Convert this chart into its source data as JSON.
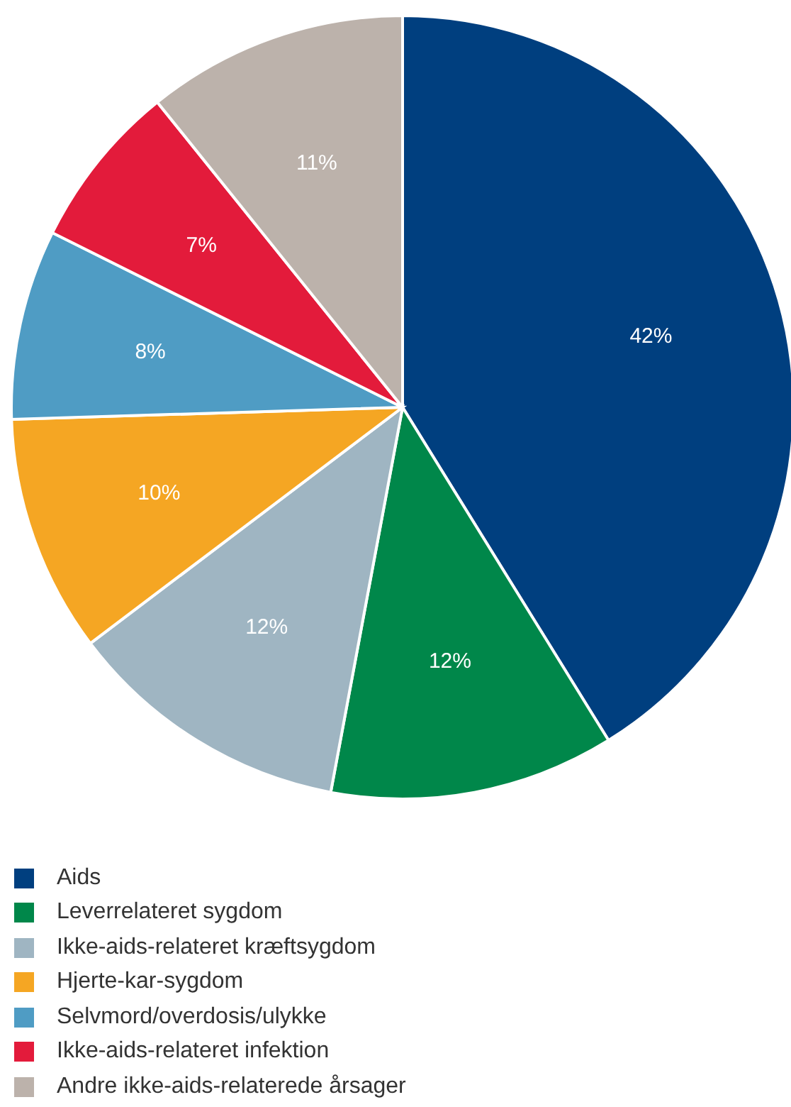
{
  "chart_data": {
    "type": "pie",
    "categories": [
      "Aids",
      "Leverrelateret sygdom",
      "Ikke-aids-relateret kræftsygdom",
      "Hjerte-kar-sygdom",
      "Selvmord/overdosis/ulykke",
      "Ikke-aids-relateret infektion",
      "Andre ikke-aids-relaterede årsager"
    ],
    "values": [
      42,
      12,
      12,
      10,
      8,
      7,
      11
    ],
    "value_labels": [
      "42%",
      "12%",
      "12%",
      "10%",
      "8%",
      "7%",
      "11%"
    ],
    "colors": [
      "#003f7f",
      "#00874a",
      "#9fb5c2",
      "#f5a623",
      "#4f9cc4",
      "#e31b3b",
      "#bcb2ab"
    ],
    "legend": "bottom left"
  }
}
